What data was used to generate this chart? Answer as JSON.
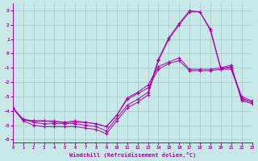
{
  "xlabel": "Windchill (Refroidissement éolien,°C)",
  "ylabel": "",
  "bg_color": "#c8e8e8",
  "line_color": "#aa00aa",
  "grid_color": "#a0c8c8",
  "xlim": [
    0,
    23
  ],
  "ylim": [
    -6.2,
    3.5
  ],
  "yticks": [
    -6,
    -5,
    -4,
    -3,
    -2,
    -1,
    0,
    1,
    2,
    3
  ],
  "xticks": [
    0,
    1,
    2,
    3,
    4,
    5,
    6,
    7,
    8,
    9,
    10,
    11,
    12,
    13,
    14,
    15,
    16,
    17,
    18,
    19,
    20,
    21,
    22,
    23
  ],
  "line1_x": [
    0,
    1,
    2,
    3,
    4,
    5,
    6,
    7,
    8,
    9,
    10,
    11,
    12,
    13,
    14,
    15,
    16,
    17,
    18,
    19,
    20,
    21,
    22,
    23
  ],
  "line1_y": [
    -3.8,
    -4.7,
    -5.0,
    -5.1,
    -5.1,
    -5.1,
    -5.1,
    -5.2,
    -5.3,
    -5.6,
    -4.7,
    -3.8,
    -3.4,
    -2.9,
    -0.5,
    1.0,
    2.0,
    2.9,
    2.9,
    1.7,
    -1.0,
    -0.8,
    -3.3,
    -3.5
  ],
  "line2_x": [
    0,
    1,
    2,
    3,
    4,
    5,
    6,
    7,
    8,
    9,
    10,
    11,
    12,
    13,
    14,
    15,
    16,
    17,
    18,
    19,
    20,
    21,
    22,
    23
  ],
  "line2_y": [
    -3.8,
    -4.6,
    -4.8,
    -4.9,
    -4.9,
    -4.9,
    -4.9,
    -5.0,
    -5.1,
    -5.4,
    -4.5,
    -3.6,
    -3.2,
    -2.7,
    -0.4,
    1.1,
    2.1,
    3.0,
    2.9,
    1.6,
    -1.1,
    -0.9,
    -3.2,
    -3.4
  ],
  "line3_x": [
    0,
    1,
    2,
    3,
    4,
    5,
    6,
    7,
    8,
    9,
    10,
    11,
    12,
    13,
    14,
    15,
    16,
    17,
    18,
    19,
    20,
    21,
    22,
    23
  ],
  "line3_y": [
    -3.8,
    -4.6,
    -4.7,
    -4.7,
    -4.8,
    -4.8,
    -4.8,
    -4.8,
    -4.9,
    -5.1,
    -4.3,
    -3.2,
    -2.8,
    -2.4,
    -1.1,
    -0.7,
    -0.5,
    -1.2,
    -1.2,
    -1.2,
    -1.1,
    -1.1,
    -3.1,
    -3.4
  ],
  "line4_x": [
    0,
    1,
    2,
    3,
    4,
    5,
    6,
    7,
    8,
    9,
    10,
    11,
    12,
    13,
    14,
    15,
    16,
    17,
    18,
    19,
    20,
    21,
    22,
    23
  ],
  "line4_y": [
    -3.8,
    -4.6,
    -4.7,
    -4.7,
    -4.7,
    -4.8,
    -4.7,
    -4.8,
    -4.9,
    -5.1,
    -4.3,
    -3.1,
    -2.7,
    -2.2,
    -0.9,
    -0.6,
    -0.3,
    -1.1,
    -1.1,
    -1.1,
    -1.0,
    -1.0,
    -3.0,
    -3.3
  ]
}
